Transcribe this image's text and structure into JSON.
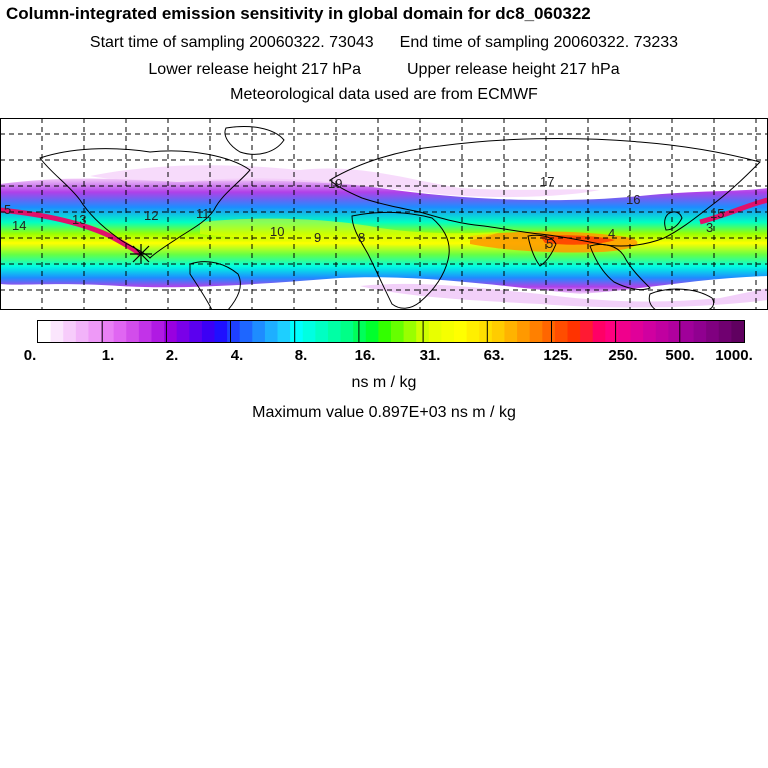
{
  "header": {
    "title": "Column-integrated emission sensitivity in global domain for dc8_060322",
    "start_label": "Start time of sampling 20060322. 73043",
    "end_label": "End time of sampling 20060322. 73233",
    "lower_label": "Lower release height  217 hPa",
    "upper_label": "Upper release height  217 hPa",
    "met_label": "Meteorological data used are from ECMWF"
  },
  "map": {
    "track_labels": [
      "5",
      "14",
      "13",
      "12",
      "11",
      "10",
      "9",
      "8",
      "19",
      "17",
      "16",
      "4",
      "3",
      "15",
      "5"
    ],
    "marker": "release-point-star"
  },
  "legend": {
    "tick_labels": [
      "0.",
      "1.",
      "2.",
      "4.",
      "8.",
      "16.",
      "31.",
      "63.",
      "125.",
      "250.",
      "500.",
      "1000."
    ],
    "colors": [
      "#ffffff",
      "#fbe6fd",
      "#f7ccfb",
      "#f2b3f9",
      "#ee99f7",
      "#e980f5",
      "#e066f2",
      "#d24deb",
      "#c233e8",
      "#b01ae3",
      "#9900e0",
      "#7a00e8",
      "#5b00ef",
      "#3c00f5",
      "#1f10ff",
      "#1e40ff",
      "#1e66ff",
      "#1e8cff",
      "#1eafff",
      "#1ecfff",
      "#00ffff",
      "#00ffe1",
      "#00ffc3",
      "#00ffa5",
      "#00ff87",
      "#00ff5a",
      "#00ff2d",
      "#33ff00",
      "#66ff00",
      "#99ff00",
      "#ccff00",
      "#e8ff00",
      "#f5ff00",
      "#ffff00",
      "#ffef00",
      "#ffdf00",
      "#ffcc00",
      "#ffb300",
      "#ff9900",
      "#ff8000",
      "#ff6600",
      "#ff4d00",
      "#ff3300",
      "#ff1a33",
      "#ff0066",
      "#ff0080",
      "#f0008c",
      "#e00099",
      "#d000a0",
      "#c000a0",
      "#b0009e",
      "#a0009a",
      "#900090",
      "#800080",
      "#700070",
      "#600060"
    ],
    "units": "ns m / kg"
  },
  "footer": {
    "max_value": "Maximum value  0.897E+03 ns m / kg"
  }
}
